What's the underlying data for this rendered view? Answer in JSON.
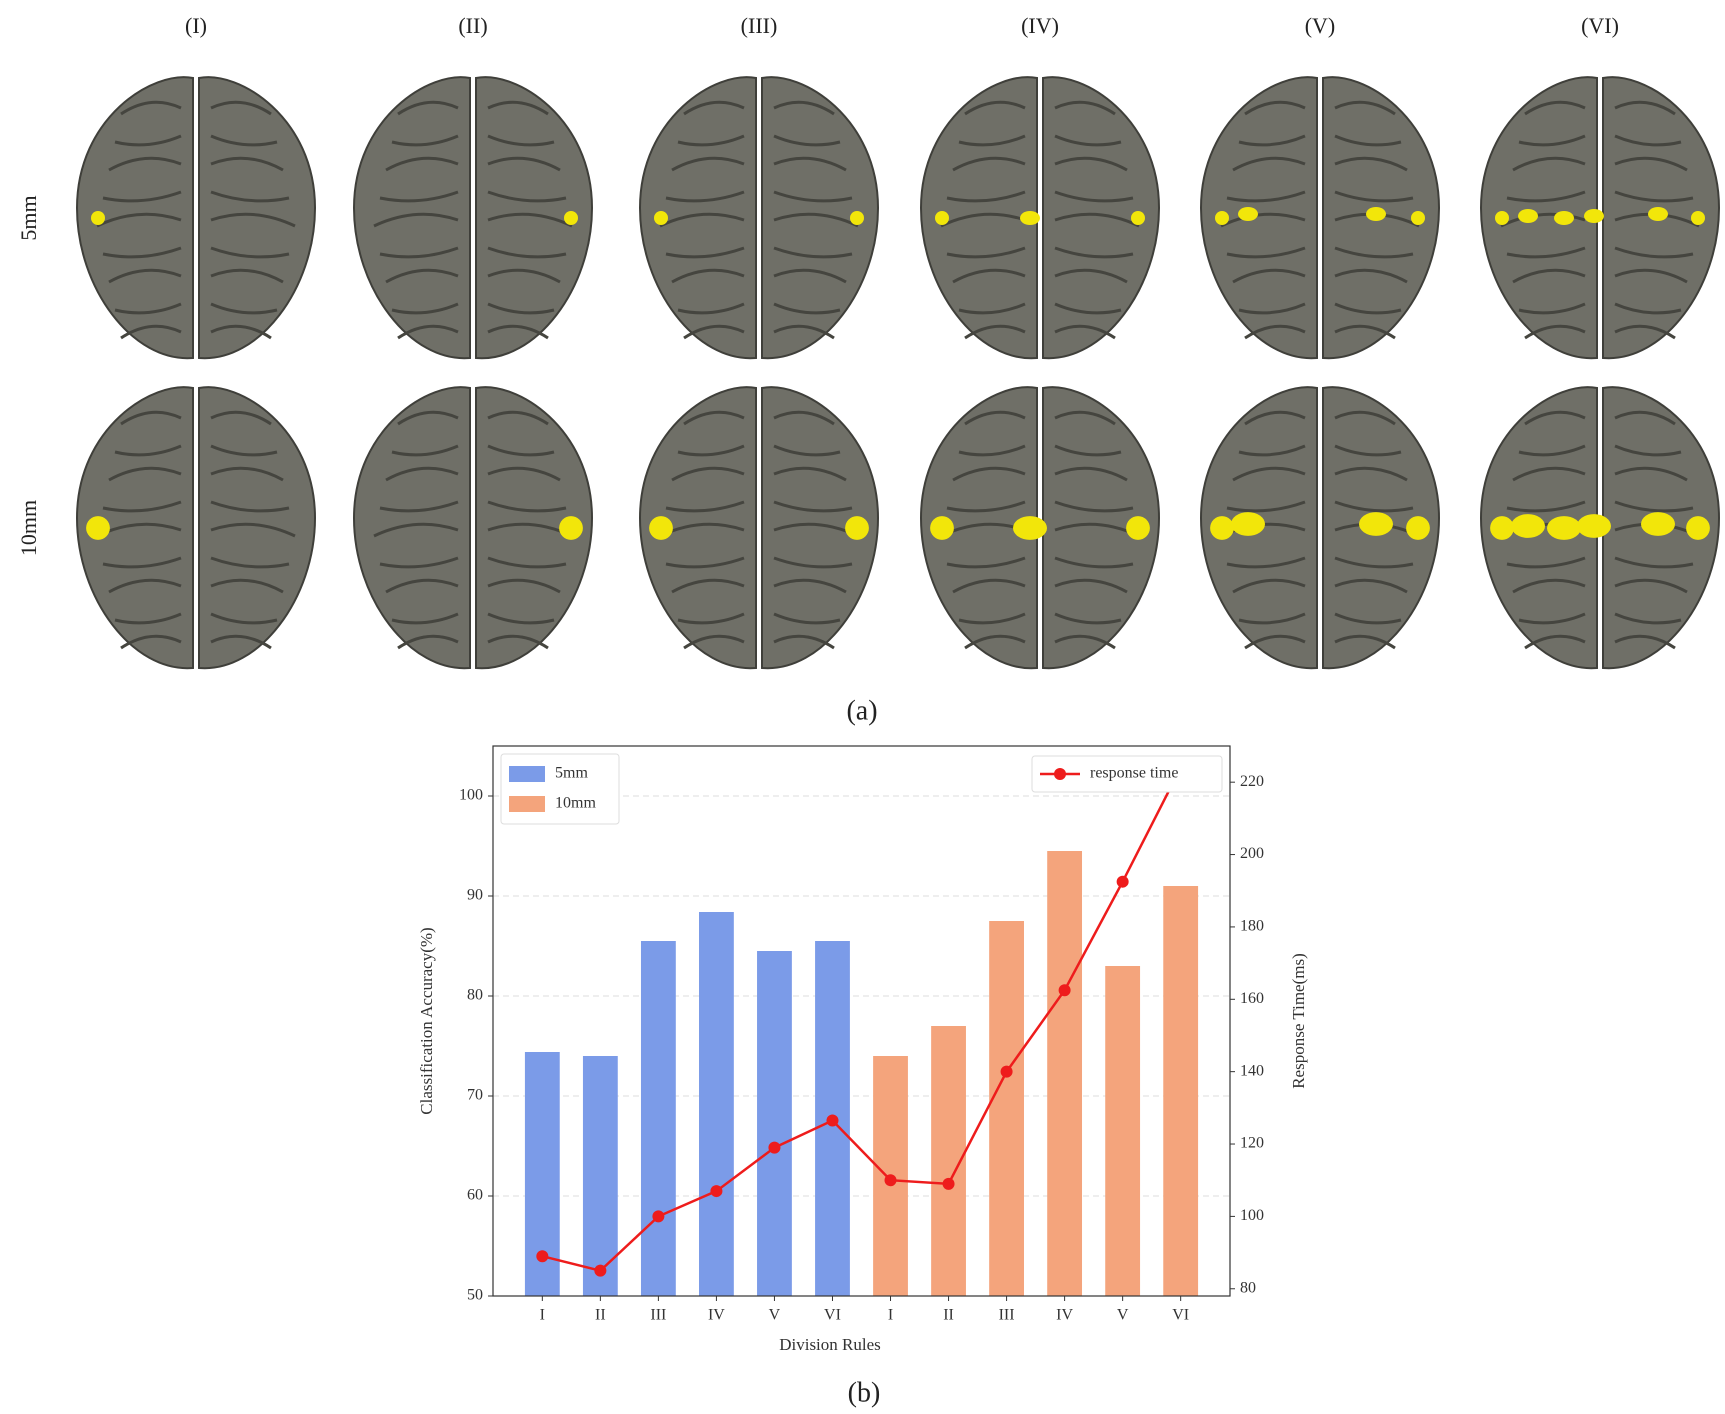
{
  "panel_a": {
    "columns": [
      "(I)",
      "(II)",
      "(III)",
      "(IV)",
      "(V)",
      "(VI)"
    ],
    "rows": [
      "5mm",
      "10mm"
    ],
    "caption": "(a)"
  },
  "caption_b": "(b)",
  "chart_data": {
    "type": "bar",
    "x_label": "Division Rules",
    "y_label": "Classification Accuracy(%)",
    "y2_label": "Response Time(ms)",
    "categories": [
      "I",
      "II",
      "III",
      "IV",
      "V",
      "VI",
      "I",
      "II",
      "III",
      "IV",
      "V",
      "VI"
    ],
    "series": [
      {
        "name": "5mm",
        "color": "#7b9be8",
        "values": [
          74.4,
          74,
          85.5,
          88.4,
          84.5,
          85.5,
          null,
          null,
          null,
          null,
          null,
          null
        ]
      },
      {
        "name": "10mm",
        "color": "#f4a47c",
        "values": [
          null,
          null,
          null,
          null,
          null,
          null,
          74,
          77,
          87.5,
          94.5,
          83,
          91
        ]
      },
      {
        "name": "response time",
        "color": "#ee1c1c",
        "type": "line",
        "axis": "y2",
        "values": [
          89,
          85,
          100,
          107,
          119,
          126.5,
          110,
          109,
          140,
          162.5,
          192.5,
          224
        ]
      }
    ],
    "ylim": [
      50,
      105
    ],
    "yticks": [
      50,
      60,
      70,
      80,
      90,
      100
    ],
    "y2lim": [
      78,
      230
    ],
    "y2ticks": [
      80,
      100,
      120,
      140,
      160,
      180,
      200,
      220
    ],
    "grid": true,
    "legend": "upper left",
    "legend2": "upper right"
  }
}
